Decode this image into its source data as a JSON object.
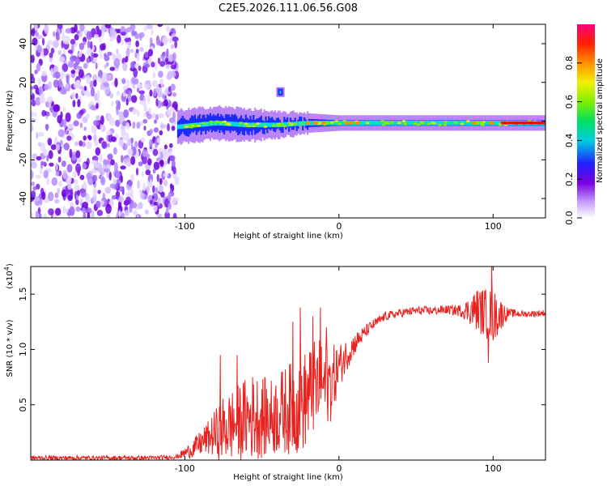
{
  "title": "C2E5.2026.111.06.56.G08",
  "colors": {
    "snr_line": "#e8221f",
    "axis": "#000000",
    "background": "#ffffff"
  },
  "chart_data": [
    {
      "type": "heatmap",
      "name": "spectrogram",
      "xlabel": "Height of straight line (km)",
      "ylabel": "Frequency (Hz)",
      "xlim": [
        -200,
        134
      ],
      "ylim": [
        -50,
        50
      ],
      "x_ticks": [
        -100,
        0,
        100
      ],
      "y_ticks": [
        -40,
        -20,
        0,
        20,
        40
      ],
      "colorbar": {
        "label": "Normalized spectral amplitude",
        "range": [
          0,
          1
        ],
        "ticks": [
          "0.0",
          "0.2",
          "0.4",
          "0.6",
          "0.8"
        ],
        "tick_values": [
          0.0,
          0.2,
          0.4,
          0.6,
          0.8
        ]
      },
      "noise_region_x": [
        -200,
        -105
      ],
      "signal_band": {
        "x": [
          -105,
          -80,
          -60,
          -40,
          -20,
          0,
          50,
          100,
          134
        ],
        "center_freq": [
          -3,
          -1,
          -2,
          -2,
          -1,
          -1,
          -1,
          -1,
          -1
        ],
        "half_width": [
          6,
          6,
          6,
          4,
          3,
          2,
          2,
          2,
          2
        ]
      },
      "isolated_blob": {
        "x": -38,
        "freq": 15
      }
    },
    {
      "type": "line",
      "name": "snr",
      "xlabel": "Height of straight line (km)",
      "ylabel": "SNR (10 * v/v)",
      "multiplier_label": "(x10",
      "multiplier_exp": "4",
      "multiplier_close": ")",
      "xlim": [
        -200,
        134
      ],
      "ylim": [
        0,
        1.75
      ],
      "x_ticks": [
        -100,
        0,
        100
      ],
      "y_ticks": [
        "0.5",
        "1.0",
        "1.5"
      ],
      "y_tick_values": [
        0.5,
        1.0,
        1.5
      ],
      "series": [
        {
          "name": "SNR",
          "x": [
            -200,
            -160,
            -120,
            -105,
            -95,
            -85,
            -75,
            -65,
            -55,
            -45,
            -35,
            -25,
            -15,
            -5,
            0,
            10,
            20,
            30,
            40,
            50,
            60,
            70,
            80,
            90,
            100,
            110,
            120,
            134
          ],
          "y": [
            0.02,
            0.02,
            0.02,
            0.03,
            0.1,
            0.2,
            0.28,
            0.35,
            0.4,
            0.38,
            0.45,
            0.5,
            0.65,
            0.7,
            0.85,
            1.05,
            1.2,
            1.3,
            1.33,
            1.35,
            1.35,
            1.36,
            1.35,
            1.36,
            1.3,
            1.33,
            1.32,
            1.33
          ],
          "noise_amp": [
            0.02,
            0.02,
            0.02,
            0.02,
            0.08,
            0.15,
            0.3,
            0.35,
            0.4,
            0.35,
            0.4,
            0.45,
            0.45,
            0.35,
            0.2,
            0.1,
            0.05,
            0.04,
            0.04,
            0.04,
            0.04,
            0.04,
            0.06,
            0.2,
            0.25,
            0.04,
            0.03,
            0.03
          ]
        }
      ],
      "peaks": [
        {
          "x": -77,
          "y": 0.95
        },
        {
          "x": -66,
          "y": 0.95
        },
        {
          "x": -30,
          "y": 1.25
        },
        {
          "x": -25,
          "y": 1.38
        },
        {
          "x": -17,
          "y": 1.3
        },
        {
          "x": -12,
          "y": 1.38
        },
        {
          "x": -8,
          "y": 1.2
        },
        {
          "x": 99,
          "y": 1.75
        },
        {
          "x": 97,
          "y": 0.88
        }
      ]
    }
  ]
}
